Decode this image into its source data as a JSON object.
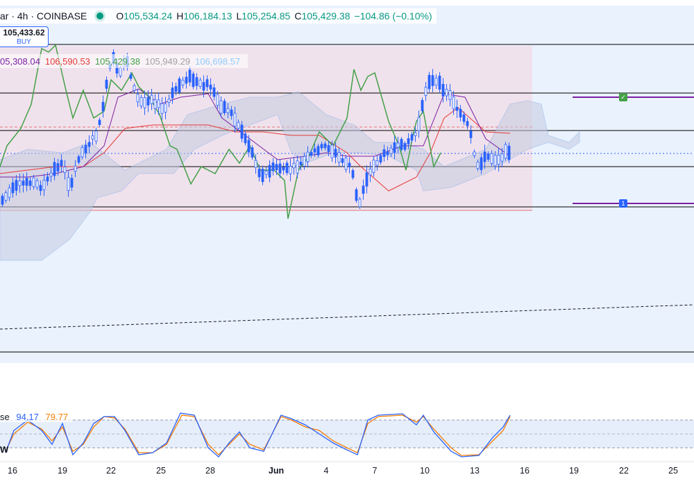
{
  "header": {
    "symbol": "ar · 4h · COINBASE",
    "open_label": "O",
    "open": "105,534.24",
    "high_label": "H",
    "high": "106,184.13",
    "low_label": "L",
    "low": "105,254.85",
    "close_label": "C",
    "close": "105,429.38",
    "change": "−104.86 (−0.10%)"
  },
  "trade_box": {
    "price": "105,433.62",
    "action": "BUY"
  },
  "indicator_values": [
    {
      "value": "05,308.04",
      "color": "#7b1fa2"
    },
    {
      "value": "106,590.53",
      "color": "#e53935"
    },
    {
      "value": "105,429.38",
      "color": "#43a047"
    },
    {
      "value": "105,949.29",
      "color": "#9e9e9e"
    },
    {
      "value": "106,698.57",
      "color": "#90caf9"
    }
  ],
  "stoch": {
    "label": "se",
    "k": "94.17",
    "d": "79.77",
    "k_color": "#2962ff",
    "d_color": "#f57c00",
    "side": "W"
  },
  "badges": {
    "check": "✓",
    "one": "1"
  },
  "x_axis": [
    "16",
    "19",
    "22",
    "25",
    "28",
    "Jun",
    "4",
    "7",
    "10",
    "13",
    "16",
    "19",
    "22",
    "25"
  ],
  "colors": {
    "up": "#2962ff",
    "down": "#2962ff",
    "kijun": "#7b1fa2",
    "tenkan": "#e53935",
    "chikou": "#43a047"
  }
}
